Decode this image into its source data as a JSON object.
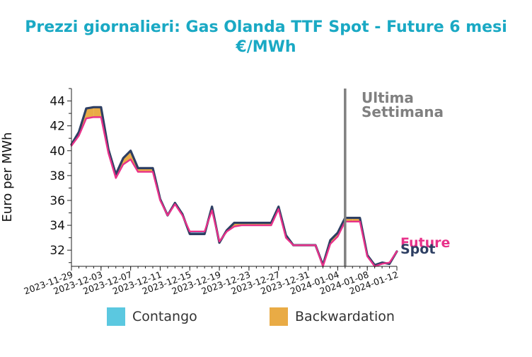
{
  "chart_data": {
    "type": "area",
    "title": "Prezzi giornalieri: Gas Olanda TTF Spot - Future 6 mesi",
    "subtitle": "€/MWh",
    "ylabel": "Euro per MWh",
    "xlabel": "",
    "ylim": [
      30.7,
      45.0
    ],
    "yticks": [
      32,
      34,
      36,
      38,
      40,
      42,
      44
    ],
    "xlim": [
      "2023-11-29",
      "2024-01-12"
    ],
    "xticks": [
      "2023-11-29",
      "2023-12-03",
      "2023-12-07",
      "2023-12-11",
      "2023-12-15",
      "2023-12-19",
      "2023-12-23",
      "2023-12-27",
      "2023-12-31",
      "2024-01-04",
      "2024-01-08",
      "2024-01-12"
    ],
    "grid": false,
    "annotation": {
      "text_line1": "Ultima",
      "text_line2": "Settimana",
      "x": "2024-01-05",
      "color": "#808080"
    },
    "series": [
      {
        "name": "Spot",
        "color": "#2e3f63",
        "points": [
          [
            "2023-11-29",
            40.5
          ],
          [
            "2023-11-30",
            41.5
          ],
          [
            "2023-12-01",
            43.4
          ],
          [
            "2023-12-02",
            43.5
          ],
          [
            "2023-12-03",
            43.5
          ],
          [
            "2023-12-04",
            40.1
          ],
          [
            "2023-12-05",
            38.1
          ],
          [
            "2023-12-06",
            39.4
          ],
          [
            "2023-12-07",
            40.0
          ],
          [
            "2023-12-08",
            38.6
          ],
          [
            "2023-12-09",
            38.6
          ],
          [
            "2023-12-10",
            38.6
          ],
          [
            "2023-12-11",
            36.1
          ],
          [
            "2023-12-12",
            34.8
          ],
          [
            "2023-12-13",
            35.8
          ],
          [
            "2023-12-14",
            34.9
          ],
          [
            "2023-12-15",
            33.3
          ],
          [
            "2023-12-16",
            33.3
          ],
          [
            "2023-12-17",
            33.3
          ],
          [
            "2023-12-18",
            35.5
          ],
          [
            "2023-12-19",
            32.6
          ],
          [
            "2023-12-20",
            33.6
          ],
          [
            "2023-12-21",
            34.2
          ],
          [
            "2023-12-22",
            34.2
          ],
          [
            "2023-12-23",
            34.2
          ],
          [
            "2023-12-24",
            34.2
          ],
          [
            "2023-12-25",
            34.2
          ],
          [
            "2023-12-26",
            34.2
          ],
          [
            "2023-12-27",
            35.5
          ],
          [
            "2023-12-28",
            33.2
          ],
          [
            "2023-12-29",
            32.4
          ],
          [
            "2023-12-30",
            32.4
          ],
          [
            "2023-12-31",
            32.4
          ],
          [
            "2024-01-01",
            32.4
          ],
          [
            "2024-01-02",
            30.8
          ],
          [
            "2024-01-03",
            32.8
          ],
          [
            "2024-01-04",
            33.4
          ],
          [
            "2024-01-05",
            34.6
          ],
          [
            "2024-01-06",
            34.6
          ],
          [
            "2024-01-07",
            34.6
          ],
          [
            "2024-01-08",
            31.6
          ],
          [
            "2024-01-09",
            30.8
          ],
          [
            "2024-01-10",
            31.0
          ],
          [
            "2024-01-11",
            30.9
          ],
          [
            "2024-01-12",
            31.9
          ]
        ]
      },
      {
        "name": "Future",
        "color": "#e8318a",
        "points": [
          [
            "2023-11-29",
            40.4
          ],
          [
            "2023-11-30",
            41.2
          ],
          [
            "2023-12-01",
            42.6
          ],
          [
            "2023-12-02",
            42.7
          ],
          [
            "2023-12-03",
            42.7
          ],
          [
            "2023-12-04",
            39.8
          ],
          [
            "2023-12-05",
            37.8
          ],
          [
            "2023-12-06",
            38.9
          ],
          [
            "2023-12-07",
            39.3
          ],
          [
            "2023-12-08",
            38.3
          ],
          [
            "2023-12-09",
            38.3
          ],
          [
            "2023-12-10",
            38.3
          ],
          [
            "2023-12-11",
            36.0
          ],
          [
            "2023-12-12",
            34.8
          ],
          [
            "2023-12-13",
            35.7
          ],
          [
            "2023-12-14",
            34.8
          ],
          [
            "2023-12-15",
            33.5
          ],
          [
            "2023-12-16",
            33.5
          ],
          [
            "2023-12-17",
            33.5
          ],
          [
            "2023-12-18",
            35.2
          ],
          [
            "2023-12-19",
            32.7
          ],
          [
            "2023-12-20",
            33.5
          ],
          [
            "2023-12-21",
            33.9
          ],
          [
            "2023-12-22",
            34.0
          ],
          [
            "2023-12-23",
            34.0
          ],
          [
            "2023-12-24",
            34.0
          ],
          [
            "2023-12-25",
            34.0
          ],
          [
            "2023-12-26",
            34.0
          ],
          [
            "2023-12-27",
            35.3
          ],
          [
            "2023-12-28",
            33.0
          ],
          [
            "2023-12-29",
            32.4
          ],
          [
            "2023-12-30",
            32.4
          ],
          [
            "2023-12-31",
            32.4
          ],
          [
            "2024-01-01",
            32.4
          ],
          [
            "2024-01-02",
            30.7
          ],
          [
            "2024-01-03",
            32.5
          ],
          [
            "2024-01-04",
            33.1
          ],
          [
            "2024-01-05",
            34.3
          ],
          [
            "2024-01-06",
            34.3
          ],
          [
            "2024-01-07",
            34.3
          ],
          [
            "2024-01-08",
            31.5
          ],
          [
            "2024-01-09",
            30.7
          ],
          [
            "2024-01-10",
            30.9
          ],
          [
            "2024-01-11",
            31.0
          ],
          [
            "2024-01-12",
            31.9
          ]
        ]
      }
    ],
    "legend": {
      "placement": "bottom",
      "items": [
        {
          "label": "Contango",
          "color": "#5bc8e0"
        },
        {
          "label": "Backwardation",
          "color": "#e9ab45"
        }
      ]
    }
  }
}
